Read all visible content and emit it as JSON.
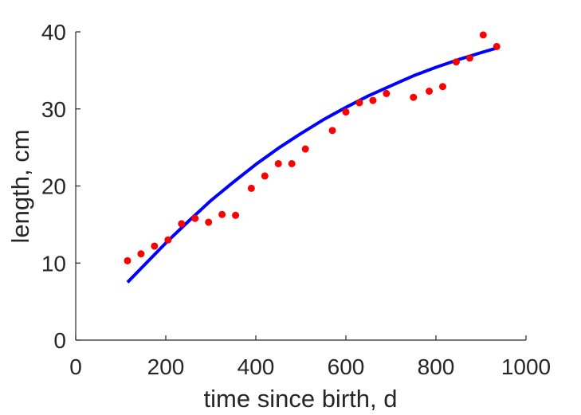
{
  "chart_data": {
    "type": "scatter",
    "title": "",
    "xlabel": "time since birth, d",
    "ylabel": "length, cm",
    "xlim": [
      0,
      1000
    ],
    "ylim": [
      0,
      40
    ],
    "x_ticks": [
      0,
      200,
      400,
      600,
      800,
      1000
    ],
    "y_ticks": [
      0,
      10,
      20,
      30,
      40
    ],
    "grid": false,
    "box": "right-top-open",
    "colors": {
      "data": "#ff0000",
      "fit": "#0000ff",
      "axis": "#262626"
    },
    "series": [
      {
        "kind": "points",
        "x": [
          115,
          145,
          175,
          205,
          235,
          265,
          295,
          325,
          355,
          390,
          420,
          450,
          480,
          510,
          570,
          600,
          630,
          660,
          690,
          750,
          785,
          815,
          845,
          875,
          905,
          935
        ],
        "y": [
          10.3,
          11.2,
          12.2,
          13.0,
          15.1,
          15.8,
          15.3,
          16.3,
          16.2,
          19.7,
          21.3,
          22.9,
          22.9,
          24.8,
          27.2,
          29.6,
          30.8,
          31.1,
          32.0,
          31.5,
          32.3,
          32.9,
          36.1,
          36.6,
          39.6,
          38.1
        ]
      },
      {
        "kind": "line",
        "x": [
          115,
          150,
          200,
          250,
          300,
          350,
          400,
          450,
          500,
          550,
          600,
          650,
          700,
          750,
          800,
          850,
          900,
          935
        ],
        "y": [
          7.5,
          9.6,
          12.6,
          15.4,
          18.1,
          20.5,
          22.8,
          24.9,
          26.8,
          28.6,
          30.2,
          31.7,
          33.0,
          34.3,
          35.4,
          36.4,
          37.3,
          37.9
        ]
      }
    ]
  }
}
